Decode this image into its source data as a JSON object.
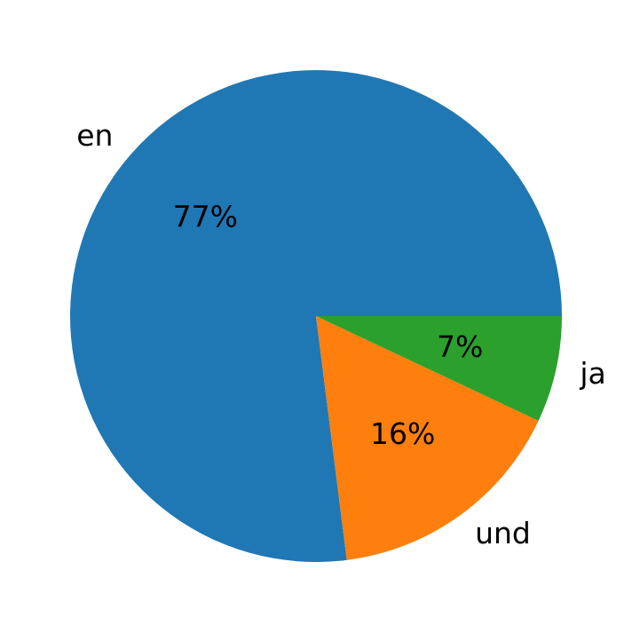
{
  "chart_data": {
    "type": "pie",
    "categories": [
      "en",
      "und",
      "ja"
    ],
    "values": [
      77,
      16,
      7
    ],
    "value_labels": [
      "77%",
      "16%",
      "7%"
    ],
    "colors": [
      "#1f77b4",
      "#ff7f0e",
      "#2ca02c"
    ]
  }
}
